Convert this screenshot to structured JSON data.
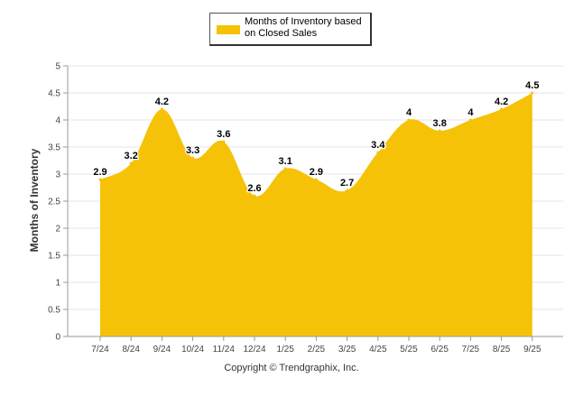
{
  "chart_data": {
    "type": "area",
    "title": "",
    "xlabel": "",
    "ylabel": "Months of Inventory",
    "ylim": [
      0,
      5
    ],
    "yticks": [
      "0",
      "0.5",
      "1",
      "1.5",
      "2",
      "2.5",
      "3",
      "3.5",
      "4",
      "4.5",
      "5"
    ],
    "grid": true,
    "legend_position": "top-center",
    "categories": [
      "7/24",
      "8/24",
      "9/24",
      "10/24",
      "11/24",
      "12/24",
      "1/25",
      "2/25",
      "3/25",
      "4/25",
      "5/25",
      "6/25",
      "7/25",
      "8/25",
      "9/25"
    ],
    "series": [
      {
        "name": "Months of Inventory based on Closed Sales",
        "color": "#F5C207",
        "values": [
          2.9,
          3.2,
          4.2,
          3.3,
          3.6,
          2.6,
          3.1,
          2.9,
          2.7,
          3.4,
          4,
          3.8,
          4,
          4.2,
          4.5
        ],
        "labels": [
          "2.9",
          "3.2",
          "4.2",
          "3.3",
          "3.6",
          "2.6",
          "3.1",
          "2.9",
          "2.7",
          "3.4",
          "4",
          "3.8",
          "4",
          "4.2",
          "4.5"
        ]
      }
    ]
  },
  "legend": {
    "label": "Months of Inventory based on Closed Sales"
  },
  "footer": {
    "copyright": "Copyright © Trendgraphix, Inc."
  }
}
